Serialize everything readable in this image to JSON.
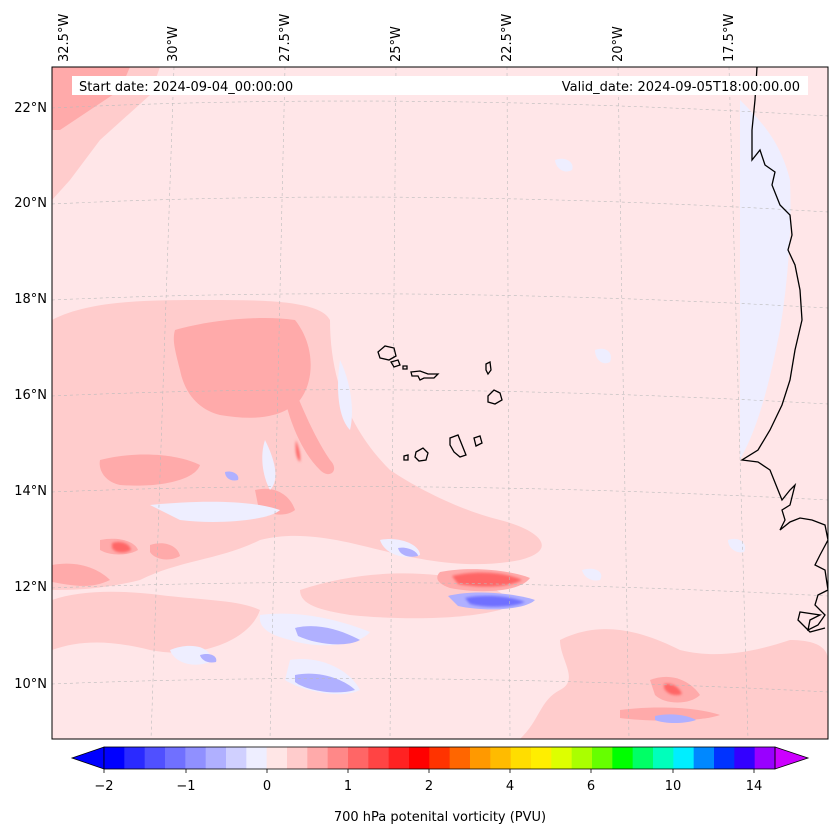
{
  "map": {
    "start_date_text": "Start date: 2024-09-04_00:00:00",
    "valid_date_text": "Valid_date: 2024-09-05T18:00:00.00",
    "lon_labels": [
      "32.5°W",
      "30°W",
      "27.5°W",
      "25°W",
      "22.5°W",
      "20°W",
      "17.5°W"
    ],
    "lat_labels": [
      "22°N",
      "20°N",
      "18°N",
      "16°N",
      "14°N",
      "12°N",
      "10°N"
    ],
    "extent": {
      "lon_min": -32.5,
      "lon_max": -15.0,
      "lat_min": 9.0,
      "lat_max": 22.6
    },
    "gridlines": true,
    "background_color": "#ffe6e8",
    "coastline_color": "#000000"
  },
  "colorbar": {
    "label": "700 hPa potenital vorticity (PVU)",
    "tick_labels": [
      "−2",
      "−1",
      "0",
      "1",
      "2",
      "4",
      "6",
      "10",
      "14"
    ],
    "colors": [
      "#0000ff",
      "#2a2aff",
      "#5050ff",
      "#7070ff",
      "#9090ff",
      "#b0b0ff",
      "#d0d0ff",
      "#eeeeff",
      "#ffe6e6",
      "#ffcccc",
      "#ffaaaa",
      "#ff8888",
      "#ff6666",
      "#ff4444",
      "#ff2222",
      "#ff0000",
      "#ff3300",
      "#ff6600",
      "#ff9900",
      "#ffbb00",
      "#ffdd00",
      "#ffee00",
      "#ddff00",
      "#aaff00",
      "#66ff00",
      "#00ff00",
      "#00ff66",
      "#00ffbb",
      "#00eeff",
      "#0088ff",
      "#0033ff",
      "#3300ff",
      "#9900ff"
    ],
    "extend": "both",
    "extend_min_color": "#0000ff",
    "extend_max_color": "#cc00ff"
  }
}
